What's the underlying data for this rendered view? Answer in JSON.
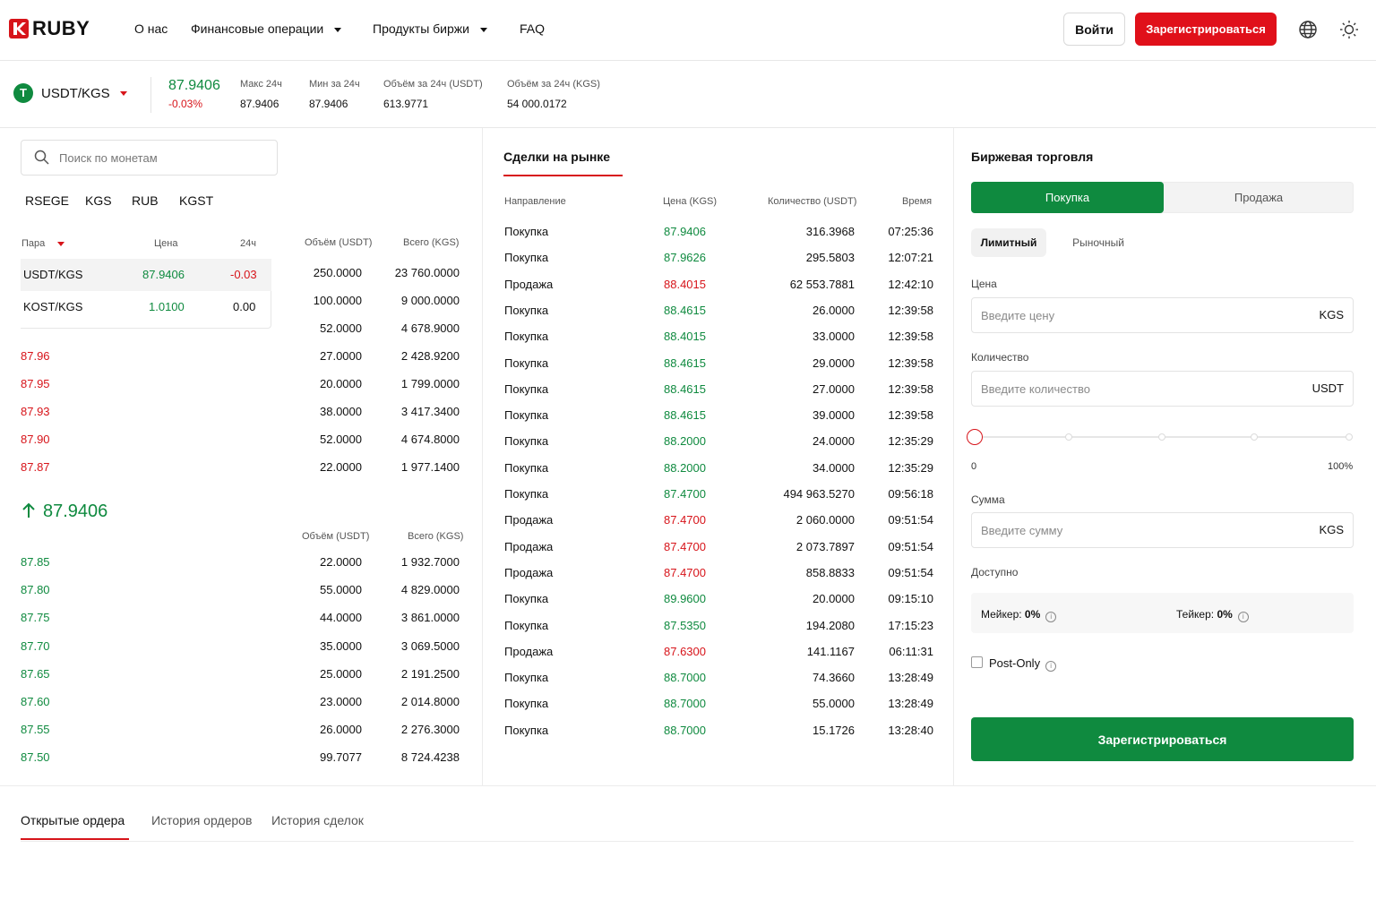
{
  "header": {
    "logo_text": "RUBY",
    "nav": [
      "О нас",
      "Финансовые операции",
      "Продукты биржи",
      "FAQ"
    ],
    "login_label": "Войти",
    "register_label": "Зарегистрироваться",
    "icons": [
      "globe-icon",
      "sun-icon"
    ]
  },
  "ticker": {
    "coin_letter": "T",
    "pair": "USDT/KGS",
    "price": "87.9406",
    "change": "-0.03%",
    "stats": [
      {
        "label": "Макс 24ч",
        "value": "87.9406"
      },
      {
        "label": "Мин за 24ч",
        "value": "87.9406"
      },
      {
        "label": "Объём за 24ч (USDT)",
        "value": "613.9771"
      },
      {
        "label": "Объём за 24ч (KGS)",
        "value": "54 000.0172"
      }
    ]
  },
  "left": {
    "search_placeholder": "Поиск по монетам",
    "currency_tabs": [
      "RSEGE",
      "KGS",
      "RUB",
      "KGST"
    ],
    "pair_headers": [
      "Пара",
      "Цена",
      "24ч"
    ],
    "pairs": [
      {
        "pair": "USDT/KGS",
        "price": "87.9406",
        "change": "-0.03"
      },
      {
        "pair": "KOST/KGS",
        "price": "1.0100",
        "change": "0.00"
      }
    ],
    "ob_headers": [
      "Объём (USDT)",
      "Всего (KGS)"
    ],
    "asks": [
      {
        "price": "",
        "vol": "250.0000",
        "total": "23 760.0000"
      },
      {
        "price": "",
        "vol": "100.0000",
        "total": "9 000.0000"
      },
      {
        "price": "",
        "vol": "52.0000",
        "total": "4 678.9000"
      },
      {
        "price": "87.96",
        "vol": "27.0000",
        "total": "2 428.9200"
      },
      {
        "price": "87.95",
        "vol": "20.0000",
        "total": "1 799.0000"
      },
      {
        "price": "87.93",
        "vol": "38.0000",
        "total": "3 417.3400"
      },
      {
        "price": "87.90",
        "vol": "52.0000",
        "total": "4 674.8000"
      },
      {
        "price": "87.87",
        "vol": "22.0000",
        "total": "1 977.1400"
      }
    ],
    "mid_price": "87.9406",
    "bid_headers": [
      "Объём (USDT)",
      "Всего (KGS)"
    ],
    "bids": [
      {
        "price": "87.85",
        "vol": "22.0000",
        "total": "1 932.7000"
      },
      {
        "price": "87.80",
        "vol": "55.0000",
        "total": "4 829.0000"
      },
      {
        "price": "87.75",
        "vol": "44.0000",
        "total": "3 861.0000"
      },
      {
        "price": "87.70",
        "vol": "35.0000",
        "total": "3 069.5000"
      },
      {
        "price": "87.65",
        "vol": "25.0000",
        "total": "2 191.2500"
      },
      {
        "price": "87.60",
        "vol": "23.0000",
        "total": "2 014.8000"
      },
      {
        "price": "87.55",
        "vol": "26.0000",
        "total": "2 276.3000"
      },
      {
        "price": "87.50",
        "vol": "99.7077",
        "total": "8 724.4238"
      }
    ]
  },
  "trades": {
    "title": "Сделки на рынке",
    "headers": [
      "Направление",
      "Цена (KGS)",
      "Количество (USDT)",
      "Время"
    ],
    "rows": [
      {
        "dir": "Покупка",
        "price": "87.9406",
        "qty": "316.3968",
        "time": "07:25:36",
        "side": "buy"
      },
      {
        "dir": "Покупка",
        "price": "87.9626",
        "qty": "295.5803",
        "time": "12:07:21",
        "side": "buy"
      },
      {
        "dir": "Продажа",
        "price": "88.4015",
        "qty": "62 553.7881",
        "time": "12:42:10",
        "side": "sell"
      },
      {
        "dir": "Покупка",
        "price": "88.4615",
        "qty": "26.0000",
        "time": "12:39:58",
        "side": "buy"
      },
      {
        "dir": "Покупка",
        "price": "88.4015",
        "qty": "33.0000",
        "time": "12:39:58",
        "side": "buy"
      },
      {
        "dir": "Покупка",
        "price": "88.4615",
        "qty": "29.0000",
        "time": "12:39:58",
        "side": "buy"
      },
      {
        "dir": "Покупка",
        "price": "88.4615",
        "qty": "27.0000",
        "time": "12:39:58",
        "side": "buy"
      },
      {
        "dir": "Покупка",
        "price": "88.4615",
        "qty": "39.0000",
        "time": "12:39:58",
        "side": "buy"
      },
      {
        "dir": "Покупка",
        "price": "88.2000",
        "qty": "24.0000",
        "time": "12:35:29",
        "side": "buy"
      },
      {
        "dir": "Покупка",
        "price": "88.2000",
        "qty": "34.0000",
        "time": "12:35:29",
        "side": "buy"
      },
      {
        "dir": "Покупка",
        "price": "87.4700",
        "qty": "494 963.5270",
        "time": "09:56:18",
        "side": "buy"
      },
      {
        "dir": "Продажа",
        "price": "87.4700",
        "qty": "2 060.0000",
        "time": "09:51:54",
        "side": "sell"
      },
      {
        "dir": "Продажа",
        "price": "87.4700",
        "qty": "2 073.7897",
        "time": "09:51:54",
        "side": "sell"
      },
      {
        "dir": "Продажа",
        "price": "87.4700",
        "qty": "858.8833",
        "time": "09:51:54",
        "side": "sell"
      },
      {
        "dir": "Покупка",
        "price": "89.9600",
        "qty": "20.0000",
        "time": "09:15:10",
        "side": "buy"
      },
      {
        "dir": "Покупка",
        "price": "87.5350",
        "qty": "194.2080",
        "time": "17:15:23",
        "side": "buy"
      },
      {
        "dir": "Продажа",
        "price": "87.6300",
        "qty": "141.1167",
        "time": "06:11:31",
        "side": "sell"
      },
      {
        "dir": "Покупка",
        "price": "88.7000",
        "qty": "74.3660",
        "time": "13:28:49",
        "side": "buy"
      },
      {
        "dir": "Покупка",
        "price": "88.7000",
        "qty": "55.0000",
        "time": "13:28:49",
        "side": "buy"
      },
      {
        "dir": "Покупка",
        "price": "88.7000",
        "qty": "15.1726",
        "time": "13:28:40",
        "side": "buy"
      }
    ]
  },
  "trade_form": {
    "title": "Биржевая торговля",
    "buy_label": "Покупка",
    "sell_label": "Продажа",
    "limit_label": "Лимитный",
    "market_label": "Рыночный",
    "price_label": "Цена",
    "price_placeholder": "Введите цену",
    "price_unit": "KGS",
    "qty_label": "Количество",
    "qty_placeholder": "Введите количество",
    "qty_unit": "USDT",
    "slider_min": "0",
    "slider_max": "100%",
    "slider_value": 0,
    "sum_label": "Сумма",
    "sum_placeholder": "Введите сумму",
    "sum_unit": "KGS",
    "available_label": "Доступно",
    "maker_label": "Мейкер:",
    "maker_value": "0%",
    "taker_label": "Тейкер:",
    "taker_value": "0%",
    "post_only_label": "Post-Only",
    "submit_label": "Зарегистрироваться"
  },
  "bottom": {
    "tabs": [
      "Открытые ордера",
      "История ордеров",
      "История сделок"
    ]
  },
  "colors": {
    "brand_red": "#d7141a",
    "green": "#0f8a3f"
  }
}
